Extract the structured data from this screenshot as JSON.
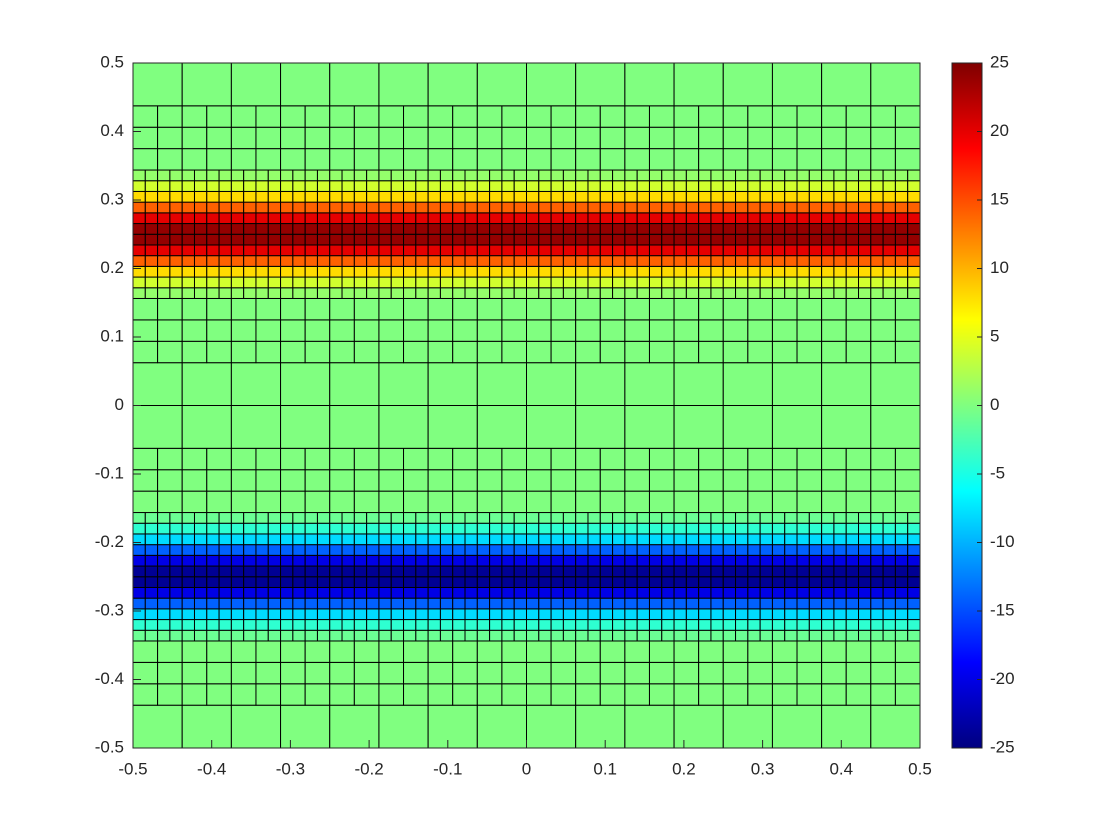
{
  "chart_data": {
    "type": "heatmap",
    "colormap": "jet",
    "xlim": [
      -0.5,
      0.5
    ],
    "ylim": [
      -0.5,
      0.5
    ],
    "xticks": [
      -0.5,
      -0.4,
      -0.3,
      -0.2,
      -0.1,
      0,
      0.1,
      0.2,
      0.3,
      0.4,
      0.5
    ],
    "yticks": [
      -0.5,
      -0.4,
      -0.3,
      -0.2,
      -0.1,
      0,
      0.1,
      0.2,
      0.3,
      0.4,
      0.5
    ],
    "clim": [
      -25,
      25
    ],
    "cticks": [
      -25,
      -20,
      -15,
      -10,
      -5,
      0,
      5,
      10,
      15,
      20,
      25
    ],
    "row_edges": [
      -0.5,
      -0.4375,
      -0.40625,
      -0.375,
      -0.34375,
      -0.328125,
      -0.3125,
      -0.296875,
      -0.28125,
      -0.265625,
      -0.25,
      -0.234375,
      -0.21875,
      -0.203125,
      -0.1875,
      -0.171875,
      -0.15625,
      -0.125,
      -0.09375,
      -0.0625,
      0,
      0.0625,
      0.09375,
      0.125,
      0.15625,
      0.171875,
      0.1875,
      0.203125,
      0.21875,
      0.234375,
      0.25,
      0.265625,
      0.28125,
      0.296875,
      0.3125,
      0.328125,
      0.34375,
      0.375,
      0.40625,
      0.4375,
      0.5
    ],
    "row_dx": [
      0.0625,
      0.03125,
      0.03125,
      0.03125,
      0.015625,
      0.015625,
      0.015625,
      0.015625,
      0.015625,
      0.015625,
      0.015625,
      0.015625,
      0.015625,
      0.015625,
      0.015625,
      0.015625,
      0.03125,
      0.03125,
      0.03125,
      0.0625,
      0.0625,
      0.03125,
      0.03125,
      0.03125,
      0.015625,
      0.015625,
      0.015625,
      0.015625,
      0.015625,
      0.015625,
      0.015625,
      0.015625,
      0.015625,
      0.015625,
      0.015625,
      0.015625,
      0.03125,
      0.03125,
      0.03125,
      0.0625
    ],
    "values": [
      0,
      0,
      0,
      0,
      -1,
      -4,
      -8,
      -14,
      -20,
      -24,
      -24,
      -20,
      -14,
      -8,
      -4,
      -1,
      0,
      0,
      0,
      0,
      0,
      0,
      0,
      0,
      1,
      4,
      8,
      14,
      20,
      24,
      24,
      20,
      14,
      8,
      4,
      1,
      0,
      0,
      0,
      0
    ]
  }
}
